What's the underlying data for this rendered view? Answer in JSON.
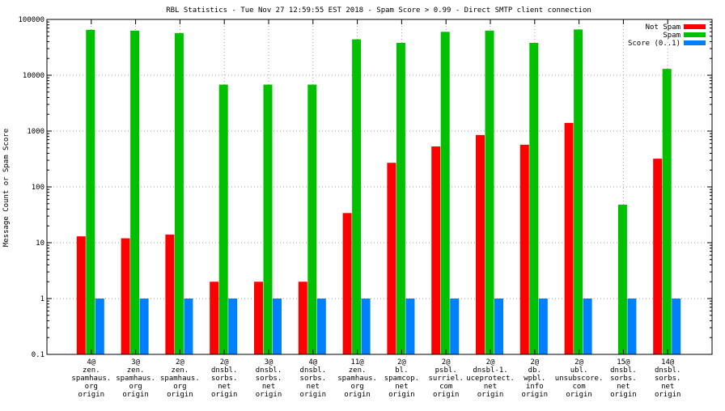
{
  "chart_data": {
    "type": "bar",
    "title": "RBL Statistics - Tue Nov 27 12:59:55 EST 2018 - Spam Score > 0.99 - Direct SMTP client connection",
    "ylabel": "Message Count or Spam Score",
    "xlabel": "",
    "yscale": "log",
    "ylim": [
      0.1,
      100000
    ],
    "ytick_labels": [
      "0.1",
      "1",
      "10",
      "100",
      "1000",
      "10000",
      "100000"
    ],
    "grid": true,
    "legend_position": "top-right",
    "categories": [
      [
        "4@",
        "zen.",
        "spamhaus.",
        "org",
        "origin"
      ],
      [
        "3@",
        "zen.",
        "spamhaus.",
        "org",
        "origin"
      ],
      [
        "2@",
        "zen.",
        "spamhaus.",
        "org",
        "origin"
      ],
      [
        "2@",
        "dnsbl.",
        "sorbs.",
        "net",
        "origin"
      ],
      [
        "3@",
        "dnsbl.",
        "sorbs.",
        "net",
        "origin"
      ],
      [
        "4@",
        "dnsbl.",
        "sorbs.",
        "net",
        "origin"
      ],
      [
        "11@",
        "zen.",
        "spamhaus.",
        "org",
        "origin"
      ],
      [
        "2@",
        "bl.",
        "spamcop.",
        "net",
        "origin"
      ],
      [
        "2@",
        "psbl.",
        "surriel.",
        "com",
        "origin"
      ],
      [
        "2@",
        "dnsbl-1.",
        "uceprotect.",
        "net",
        "origin"
      ],
      [
        "2@",
        "db.",
        "wpbl.",
        "info",
        "origin"
      ],
      [
        "2@",
        "ubl.",
        "unsubscore.",
        "com",
        "origin"
      ],
      [
        "15@",
        "dnsbl.",
        "sorbs.",
        "net",
        "origin"
      ],
      [
        "14@",
        "dnsbl.",
        "sorbs.",
        "net",
        "origin"
      ]
    ],
    "series": [
      {
        "name": "Not Spam",
        "color": "#ff0000",
        "values": [
          13,
          12,
          14,
          2,
          2,
          2,
          34,
          270,
          530,
          850,
          570,
          1400,
          null,
          320
        ]
      },
      {
        "name": "Spam",
        "color": "#00c000",
        "values": [
          65000,
          63000,
          57000,
          6800,
          6800,
          6800,
          44000,
          38000,
          60000,
          63000,
          38000,
          66000,
          48,
          13000
        ]
      },
      {
        "name": "Score (0..1)",
        "color": "#0080ff",
        "values": [
          1,
          1,
          1,
          1,
          1,
          1,
          1,
          1,
          1,
          1,
          1,
          1,
          1,
          1
        ]
      }
    ]
  }
}
